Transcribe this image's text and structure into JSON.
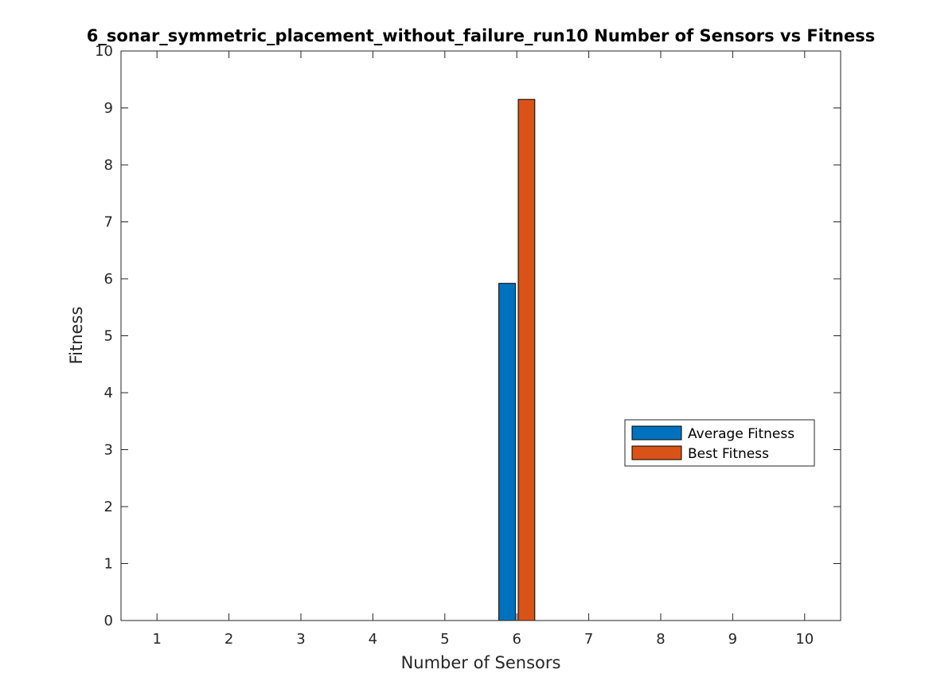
{
  "chart_data": {
    "type": "bar",
    "title": "6_sonar_symmetric_placement_without_failure_run10 Number of Sensors vs Fitness",
    "xlabel": "Number of Sensors",
    "ylabel": "Fitness",
    "categories": [
      "1",
      "2",
      "3",
      "4",
      "5",
      "6",
      "7",
      "8",
      "9",
      "10"
    ],
    "xlim": [
      0.5,
      10.5
    ],
    "ylim": [
      0,
      10
    ],
    "yticks": [
      "0",
      "1",
      "2",
      "3",
      "4",
      "5",
      "6",
      "7",
      "8",
      "9",
      "10"
    ],
    "series": [
      {
        "name": "Average Fitness",
        "color": "#0072BD",
        "values": [
          0,
          0,
          0,
          0,
          0,
          5.92,
          0,
          0,
          0,
          0
        ]
      },
      {
        "name": "Best Fitness",
        "color": "#D95319",
        "values": [
          0,
          0,
          0,
          0,
          0,
          9.15,
          0,
          0,
          0,
          0
        ]
      }
    ],
    "grid": false,
    "legend_position": "right"
  }
}
